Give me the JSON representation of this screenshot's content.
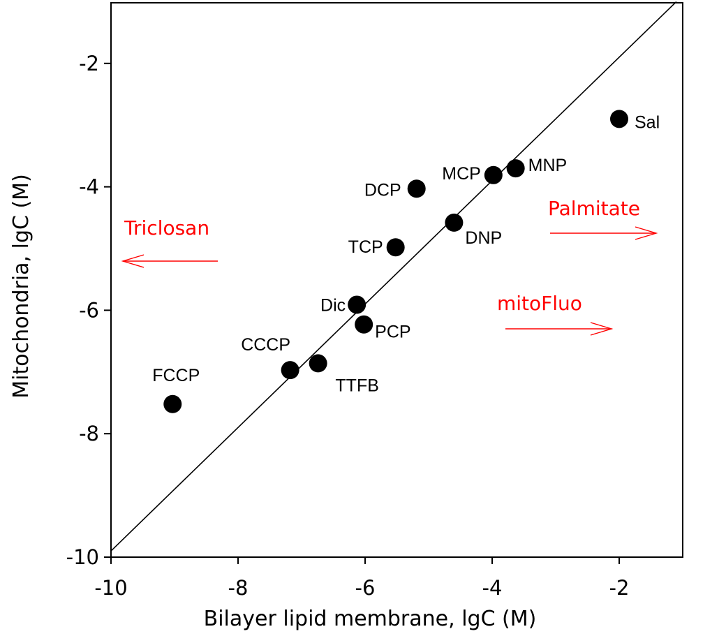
{
  "chart_data": {
    "type": "scatter",
    "xlabel": "Bilayer lipid membrane, lgC (M)",
    "ylabel": "Mitochondria, lgC (M)",
    "xlim": [
      -10,
      -1
    ],
    "ylim": [
      -10,
      -1
    ],
    "x_ticks": [
      -10,
      -8,
      -6,
      -4,
      -2
    ],
    "y_ticks": [
      -10,
      -8,
      -6,
      -4,
      -2
    ],
    "x_tick_labels": [
      "-10",
      "-8",
      "-6",
      "-4",
      "-2"
    ],
    "y_tick_labels": [
      "-10",
      "-8",
      "-6",
      "-4",
      "-2"
    ],
    "grid": false,
    "reference_line": {
      "from": [
        -10,
        -9.9
      ],
      "to": [
        -1.1,
        -1.0
      ]
    },
    "points": [
      {
        "label": "FCCP",
        "x": -9.03,
        "y": -7.52
      },
      {
        "label": "CCCP",
        "x": -7.18,
        "y": -6.97
      },
      {
        "label": "TTFB",
        "x": -6.74,
        "y": -6.86
      },
      {
        "label": "Dic",
        "x": -6.13,
        "y": -5.91
      },
      {
        "label": "PCP",
        "x": -6.02,
        "y": -6.23
      },
      {
        "label": "TCP",
        "x": -5.52,
        "y": -4.98
      },
      {
        "label": "DCP",
        "x": -5.19,
        "y": -4.03
      },
      {
        "label": "DNP",
        "x": -4.6,
        "y": -4.58
      },
      {
        "label": "MCP",
        "x": -3.98,
        "y": -3.81
      },
      {
        "label": "MNP",
        "x": -3.63,
        "y": -3.7
      },
      {
        "label": "Sal",
        "x": -2.0,
        "y": -2.9
      }
    ],
    "annotations": [
      {
        "text": "Triclosan",
        "direction": "left"
      },
      {
        "text": "Palmitate",
        "direction": "right"
      },
      {
        "text": "mitoFluo",
        "direction": "right"
      }
    ],
    "annotation_color": "#ff0000",
    "point_color": "#000000"
  }
}
